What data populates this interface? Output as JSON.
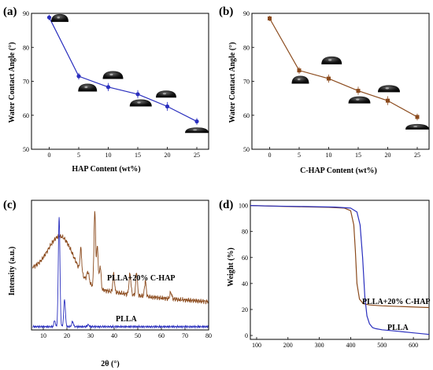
{
  "chart_data": [
    {
      "panel_label": "(a)",
      "type": "line",
      "xlabel": "HAP Content (wt%)",
      "ylabel": "Water Contact Angle (°)",
      "xlim": [
        -3,
        27
      ],
      "ylim": [
        50,
        90
      ],
      "x_ticks": [
        0,
        5,
        10,
        15,
        20,
        25
      ],
      "y_ticks": [
        50,
        60,
        70,
        80,
        90
      ],
      "series": [
        {
          "color": "#2a2fbe",
          "x": [
            0,
            5,
            10,
            15,
            20,
            25
          ],
          "y": [
            88.8,
            71.5,
            68.3,
            66.2,
            62.6,
            58.2
          ],
          "err": [
            0.8,
            1.0,
            1.2,
            1.2,
            1.3,
            1.0
          ]
        }
      ],
      "droplets": "water droplet images above each point"
    },
    {
      "panel_label": "(b)",
      "type": "line",
      "xlabel": "C-HAP Content (wt%)",
      "ylabel": "Water Contact Angle (°)",
      "xlim": [
        -3,
        27
      ],
      "ylim": [
        50,
        90
      ],
      "x_ticks": [
        0,
        5,
        10,
        15,
        20,
        25
      ],
      "y_ticks": [
        50,
        60,
        70,
        80,
        90
      ],
      "series": [
        {
          "color": "#8b4a1c",
          "x": [
            0,
            5,
            10,
            15,
            20,
            25
          ],
          "y": [
            88.5,
            73.2,
            70.8,
            67.2,
            64.3,
            59.5
          ],
          "err": [
            0.8,
            1.0,
            1.2,
            1.2,
            1.3,
            1.0
          ]
        }
      ],
      "droplets": "water droplet images above each point"
    },
    {
      "panel_label": "(c)",
      "type": "line",
      "xlabel": "2θ (°)",
      "ylabel": "Intensity (a.u.)",
      "xlim": [
        5,
        80
      ],
      "x_ticks": [
        10,
        20,
        30,
        40,
        50,
        60,
        70,
        80
      ],
      "series": [
        {
          "name": "PLLA+20% C-HAP",
          "color": "#8b4a1c",
          "trace": "broad amorphous hump centred near 18°, sharp HAP peaks near 26°, 32–34°, 40°, 46–53°, decaying baseline"
        },
        {
          "name": "PLLA",
          "color": "#2a2fbe",
          "trace": "flat baseline with strong sharp peak at 16.7° and smaller peak at 19°"
        }
      ],
      "annotations": [
        "PLLA+20% C-HAP",
        "PLLA"
      ]
    },
    {
      "panel_label": "(d)",
      "type": "line",
      "xlabel": "",
      "ylabel": "Weight (%)",
      "xlim": [
        80,
        650
      ],
      "ylim": [
        0,
        100
      ],
      "x_ticks": [
        100,
        200,
        300,
        400,
        500,
        600
      ],
      "y_ticks": [
        0,
        20,
        40,
        60,
        80,
        100
      ],
      "series": [
        {
          "name": "PLLA+20% C-HAP",
          "color": "#8b4a1c",
          "x": [
            80,
            150,
            250,
            330,
            380,
            400,
            410,
            415,
            420,
            428,
            440,
            460,
            500,
            650
          ],
          "y": [
            100,
            99.5,
            99,
            98.6,
            98,
            96,
            85,
            65,
            40,
            28,
            24.5,
            23.5,
            22.8,
            21.5
          ]
        },
        {
          "name": "PLLA",
          "color": "#2a2fbe",
          "x": [
            80,
            150,
            250,
            350,
            400,
            420,
            430,
            438,
            445,
            452,
            460,
            470,
            480,
            500,
            550,
            600,
            650
          ],
          "y": [
            100,
            99.6,
            99.2,
            98.8,
            98,
            95,
            85,
            60,
            30,
            15,
            9,
            6,
            5.2,
            4.4,
            3.2,
            2,
            0.8
          ]
        }
      ],
      "annotations": [
        "PLLA+20% C-HAP",
        "PLLA"
      ]
    }
  ]
}
